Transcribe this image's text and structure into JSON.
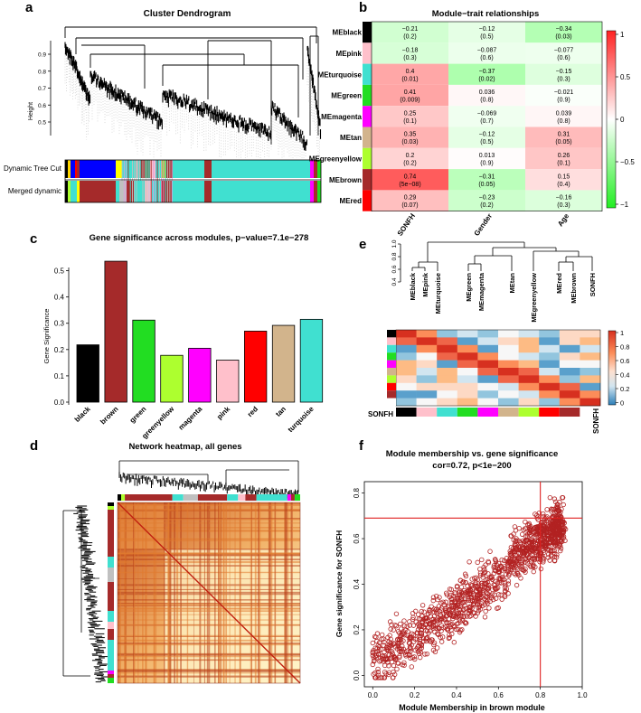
{
  "panels": {
    "a": "a",
    "b": "b",
    "c": "c",
    "d": "d",
    "e": "e",
    "f": "f"
  },
  "colors": {
    "black": "#000000",
    "pink": "#ffc0cb",
    "turquoise": "#40e0d0",
    "green": "#22dd22",
    "magenta": "#ff00ff",
    "tan": "#d2b48c",
    "greenyellow": "#adff2f",
    "brown": "#a52a2a",
    "red": "#ff0000"
  },
  "chart_data": [
    {
      "id": "dendrogram",
      "type": "dendrogram",
      "title": "Cluster Dendrogram",
      "ylabel": "Height",
      "yticks": [
        "0.9",
        "0.8",
        "0.7",
        "0.6",
        "0.5"
      ],
      "ylim": [
        0.42,
        0.98
      ],
      "row_labels": [
        "Dynamic Tree Cut",
        "Merged dynamic"
      ]
    },
    {
      "id": "module_trait",
      "type": "heatmap",
      "title": "Module−trait relationships",
      "rows": [
        "MEblack",
        "MEpink",
        "MEturquoise",
        "MEgreen",
        "MEmagenta",
        "MEtan",
        "MEgreenyellow",
        "MEbrown",
        "MEred"
      ],
      "row_colors": [
        "black",
        "pink",
        "turquoise",
        "green",
        "magenta",
        "tan",
        "greenyellow",
        "brown",
        "red"
      ],
      "cols": [
        "SONFH",
        "Gender",
        "Age"
      ],
      "cor": [
        [
          -0.21,
          -0.12,
          -0.34
        ],
        [
          -0.18,
          -0.087,
          -0.077
        ],
        [
          0.4,
          -0.37,
          -0.15
        ],
        [
          0.41,
          0.036,
          -0.021
        ],
        [
          0.25,
          -0.069,
          0.039
        ],
        [
          0.35,
          -0.12,
          0.31
        ],
        [
          0.2,
          0.013,
          0.26
        ],
        [
          0.74,
          -0.31,
          0.15
        ],
        [
          0.29,
          -0.23,
          -0.16
        ]
      ],
      "cells": [
        [
          "−0.21",
          "(0.2)",
          "−0.12",
          "(0.5)",
          "−0.34",
          "(0.03)"
        ],
        [
          "−0.18",
          "(0.3)",
          "−0.087",
          "(0.6)",
          "−0.077",
          "(0.6)"
        ],
        [
          "0.4",
          "(0.01)",
          "−0.37",
          "(0.02)",
          "−0.15",
          "(0.3)"
        ],
        [
          "0.41",
          "(0.009)",
          "0.036",
          "(0.8)",
          "−0.021",
          "(0.9)"
        ],
        [
          "0.25",
          "(0.1)",
          "−0.069",
          "(0.7)",
          "0.039",
          "(0.8)"
        ],
        [
          "0.35",
          "(0.03)",
          "−0.12",
          "(0.5)",
          "0.31",
          "(0.05)"
        ],
        [
          "0.2",
          "(0.2)",
          "0.013",
          "(0.9)",
          "0.26",
          "(0.1)"
        ],
        [
          "0.74",
          "(5e−08)",
          "−0.31",
          "(0.05)",
          "0.15",
          "(0.4)"
        ],
        [
          "0.29",
          "(0.07)",
          "−0.23",
          "(0.2)",
          "−0.16",
          "(0.3)"
        ]
      ],
      "colorbar_ticks": [
        "1",
        "0.5",
        "0",
        "−0.5",
        "−1"
      ]
    },
    {
      "id": "gene_significance",
      "type": "bar",
      "title": "Gene significance across modules, p−value=7.1e−278",
      "ylabel": "Gene Significance",
      "categories": [
        "black",
        "brown",
        "green",
        "greenyellow",
        "magenta",
        "pink",
        "red",
        "tan",
        "turquoise"
      ],
      "values": [
        0.218,
        0.536,
        0.312,
        0.178,
        0.205,
        0.16,
        0.27,
        0.292,
        0.315
      ],
      "ylim": [
        0,
        0.55
      ],
      "yticks": [
        "0.0",
        "0.1",
        "0.2",
        "0.3",
        "0.4",
        "0.5"
      ]
    },
    {
      "id": "eigengene_adjacency",
      "type": "heatmap",
      "dendro_labels": [
        "MEblack",
        "MEpink",
        "MEturquoise",
        "MEgreen",
        "MEmagenta",
        "MEtan",
        "MEgreenyellow",
        "MEred",
        "MEbrown",
        "SONFH"
      ],
      "dendro_yticks": [
        "1.0",
        "0.8",
        "0.6",
        "0.4"
      ],
      "row_label": "SONFH",
      "col_label": "SONFH",
      "colorbar_ticks": [
        "1",
        "0.8",
        "0.6",
        "0.4",
        "0.2",
        "0"
      ]
    },
    {
      "id": "network_heatmap",
      "type": "heatmap",
      "title": "Network heatmap, all genes"
    },
    {
      "id": "module_membership",
      "type": "scatter",
      "title": "Module membership vs. gene significance",
      "subtitle": "cor=0.72, p<1e−200",
      "xlabel": "Module Membership in brown module",
      "ylabel": "Gene significance for  SONFH",
      "xlim": [
        -0.04,
        1.0
      ],
      "ylim": [
        -0.05,
        0.85
      ],
      "xticks": [
        "0.0",
        "0.2",
        "0.4",
        "0.6",
        "0.8",
        "1.0"
      ],
      "yticks": [
        "0.0",
        "0.2",
        "0.4",
        "0.6",
        "0.8"
      ],
      "vline": 0.8,
      "hline": 0.69,
      "n_points": 1300
    }
  ]
}
